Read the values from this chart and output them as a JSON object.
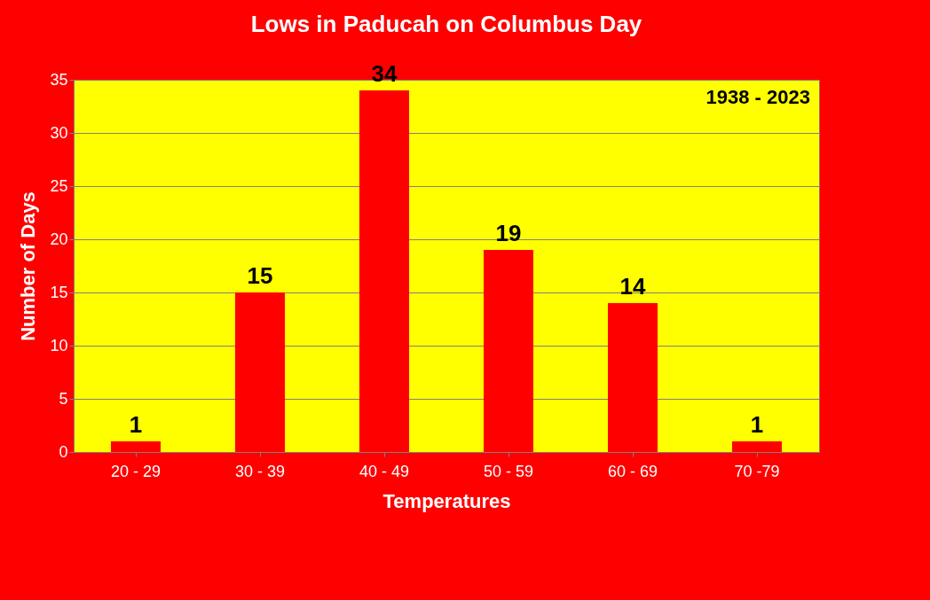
{
  "chart_data": {
    "type": "bar",
    "title": "Lows in Paducah on Columbus Day",
    "xlabel": "Temperatures",
    "ylabel": "Number of Days",
    "categories": [
      "20 - 29",
      "30 - 39",
      "40 - 49",
      "50 - 59",
      "60 - 69",
      "70 -79"
    ],
    "values": [
      1,
      15,
      34,
      19,
      14,
      1
    ],
    "color": "#ff0000",
    "ylim": [
      0,
      35
    ],
    "yticks": [
      0,
      5,
      10,
      15,
      20,
      25,
      30,
      35
    ],
    "grid": "y",
    "data_labels": true,
    "annotations": [
      "1938 - 2023"
    ]
  }
}
